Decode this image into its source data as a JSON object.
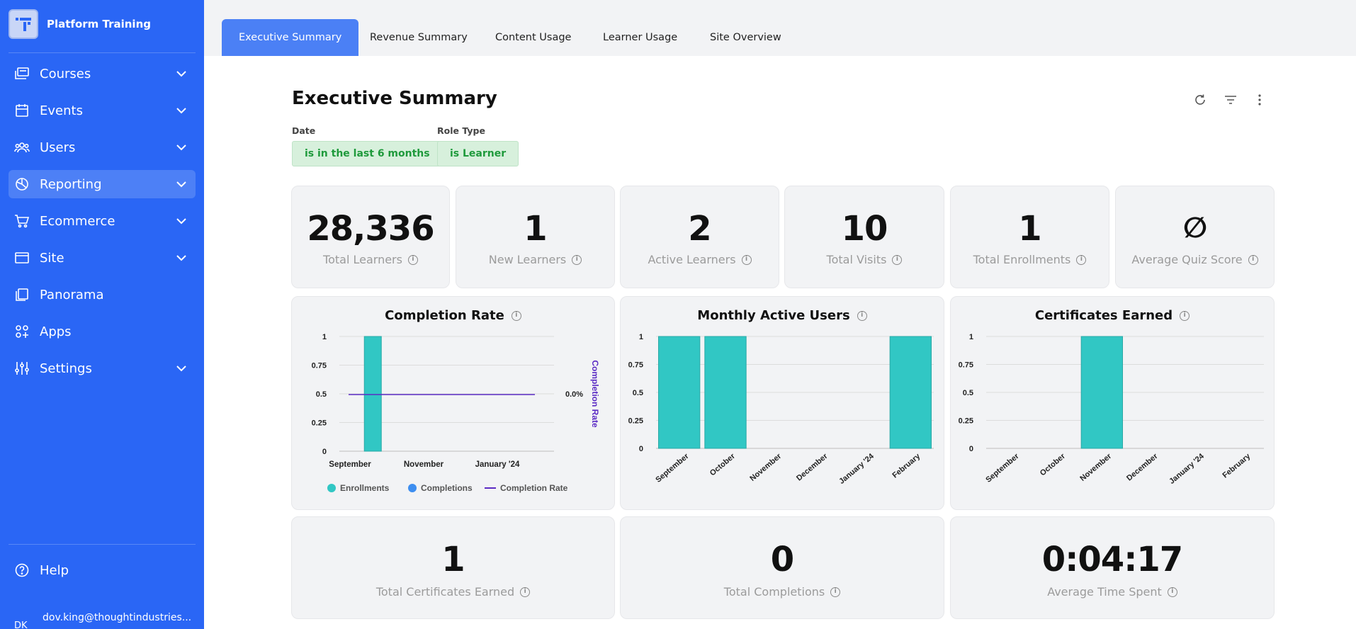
{
  "brand": {
    "name": "Platform Training"
  },
  "nav": [
    {
      "label": "Courses",
      "icon": "courses-icon",
      "chevron": true,
      "active": false
    },
    {
      "label": "Events",
      "icon": "calendar-icon",
      "chevron": true,
      "active": false
    },
    {
      "label": "Users",
      "icon": "users-icon",
      "chevron": true,
      "active": false
    },
    {
      "label": "Reporting",
      "icon": "pie-chart-icon",
      "chevron": true,
      "active": true
    },
    {
      "label": "Ecommerce",
      "icon": "cart-icon",
      "chevron": true,
      "active": false
    },
    {
      "label": "Site",
      "icon": "browser-icon",
      "chevron": true,
      "active": false
    },
    {
      "label": "Panorama",
      "icon": "panorama-icon",
      "chevron": false,
      "active": false
    },
    {
      "label": "Apps",
      "icon": "apps-icon",
      "chevron": false,
      "active": false
    },
    {
      "label": "Settings",
      "icon": "sliders-icon",
      "chevron": true,
      "active": false
    }
  ],
  "help": {
    "label": "Help"
  },
  "user": {
    "email": "dov.king@thoughtindustries...",
    "initials": "DK"
  },
  "tabs": [
    {
      "label": "Executive Summary",
      "active": true
    },
    {
      "label": "Revenue Summary",
      "active": false
    },
    {
      "label": "Content Usage",
      "active": false
    },
    {
      "label": "Learner Usage",
      "active": false
    },
    {
      "label": "Site Overview",
      "active": false
    }
  ],
  "page": {
    "title": "Executive Summary"
  },
  "filters": {
    "date": {
      "label": "Date",
      "value": "is in the last 6 months"
    },
    "role": {
      "label": "Role Type",
      "value": "is Learner"
    }
  },
  "kpis": [
    {
      "value": "28,336",
      "label": "Total Learners"
    },
    {
      "value": "1",
      "label": "New Learners"
    },
    {
      "value": "2",
      "label": "Active Learners"
    },
    {
      "value": "10",
      "label": "Total Visits"
    },
    {
      "value": "1",
      "label": "Total Enrollments"
    },
    {
      "value": "∅",
      "label": "Average Quiz Score"
    }
  ],
  "kpis_bottom": [
    {
      "value": "1",
      "label": "Total Certificates Earned"
    },
    {
      "value": "0",
      "label": "Total Completions"
    },
    {
      "value": "0:04:17",
      "label": "Average Time Spent"
    }
  ],
  "colors": {
    "sidebar": "#2a66f5",
    "bar": "#31c7c4",
    "completions": "#3d8ef0",
    "rate_line": "#5b2bc4",
    "chip_text": "#1f9a3c"
  },
  "chart_data": [
    {
      "type": "bar",
      "title": "Completion Rate",
      "categories": [
        "September",
        "October",
        "November",
        "December",
        "January '24",
        "February"
      ],
      "x_tick_labels": [
        "September",
        "November",
        "January '24"
      ],
      "series": [
        {
          "name": "Enrollments",
          "values": [
            1,
            0,
            0,
            0,
            0,
            0
          ]
        },
        {
          "name": "Completions",
          "values": [
            0,
            0,
            0,
            0,
            0,
            0
          ]
        },
        {
          "name": "Completion Rate",
          "values": [
            0,
            0,
            0,
            0,
            0,
            0
          ]
        }
      ],
      "y_ticks": [
        "0",
        "0.25",
        "0.5",
        "0.75",
        "1"
      ],
      "ylim": [
        0,
        1
      ],
      "y2label": "Completion Rate",
      "y2_tick": "0.0%",
      "legend": "bottom"
    },
    {
      "type": "bar",
      "title": "Monthly Active Users",
      "categories": [
        "September",
        "October",
        "November",
        "December",
        "January '24",
        "February"
      ],
      "values": [
        1,
        1,
        0,
        0,
        0,
        1
      ],
      "y_ticks": [
        "0",
        "0.25",
        "0.5",
        "0.75",
        "1"
      ],
      "ylim": [
        0,
        1
      ]
    },
    {
      "type": "bar",
      "title": "Certificates Earned",
      "categories": [
        "September",
        "October",
        "November",
        "December",
        "January '24",
        "February"
      ],
      "values": [
        0,
        0,
        1,
        0,
        0,
        0
      ],
      "y_ticks": [
        "0",
        "0.25",
        "0.5",
        "0.75",
        "1"
      ],
      "ylim": [
        0,
        1
      ]
    }
  ]
}
